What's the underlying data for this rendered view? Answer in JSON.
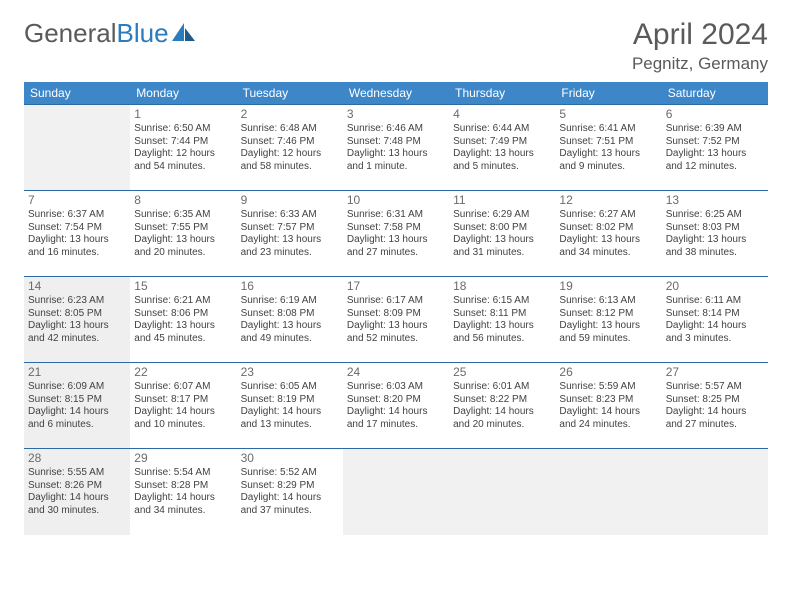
{
  "logo": {
    "part1": "General",
    "part2": "Blue"
  },
  "title": "April 2024",
  "location": "Pegnitz, Germany",
  "colors": {
    "header_bg": "#3d87c9",
    "header_text": "#ffffff",
    "row_border": "#2b6aa3",
    "shade_bg": "#efefef",
    "text": "#424242",
    "title_color": "#5a5a5a"
  },
  "weekdays": [
    "Sunday",
    "Monday",
    "Tuesday",
    "Wednesday",
    "Thursday",
    "Friday",
    "Saturday"
  ],
  "weeks": [
    [
      {
        "empty": true
      },
      {
        "day": "1",
        "sunrise": "Sunrise: 6:50 AM",
        "sunset": "Sunset: 7:44 PM",
        "d1": "Daylight: 12 hours",
        "d2": "and 54 minutes."
      },
      {
        "day": "2",
        "sunrise": "Sunrise: 6:48 AM",
        "sunset": "Sunset: 7:46 PM",
        "d1": "Daylight: 12 hours",
        "d2": "and 58 minutes."
      },
      {
        "day": "3",
        "sunrise": "Sunrise: 6:46 AM",
        "sunset": "Sunset: 7:48 PM",
        "d1": "Daylight: 13 hours",
        "d2": "and 1 minute."
      },
      {
        "day": "4",
        "sunrise": "Sunrise: 6:44 AM",
        "sunset": "Sunset: 7:49 PM",
        "d1": "Daylight: 13 hours",
        "d2": "and 5 minutes."
      },
      {
        "day": "5",
        "sunrise": "Sunrise: 6:41 AM",
        "sunset": "Sunset: 7:51 PM",
        "d1": "Daylight: 13 hours",
        "d2": "and 9 minutes."
      },
      {
        "day": "6",
        "sunrise": "Sunrise: 6:39 AM",
        "sunset": "Sunset: 7:52 PM",
        "d1": "Daylight: 13 hours",
        "d2": "and 12 minutes."
      }
    ],
    [
      {
        "day": "7",
        "sunrise": "Sunrise: 6:37 AM",
        "sunset": "Sunset: 7:54 PM",
        "d1": "Daylight: 13 hours",
        "d2": "and 16 minutes."
      },
      {
        "day": "8",
        "sunrise": "Sunrise: 6:35 AM",
        "sunset": "Sunset: 7:55 PM",
        "d1": "Daylight: 13 hours",
        "d2": "and 20 minutes."
      },
      {
        "day": "9",
        "sunrise": "Sunrise: 6:33 AM",
        "sunset": "Sunset: 7:57 PM",
        "d1": "Daylight: 13 hours",
        "d2": "and 23 minutes."
      },
      {
        "day": "10",
        "sunrise": "Sunrise: 6:31 AM",
        "sunset": "Sunset: 7:58 PM",
        "d1": "Daylight: 13 hours",
        "d2": "and 27 minutes."
      },
      {
        "day": "11",
        "sunrise": "Sunrise: 6:29 AM",
        "sunset": "Sunset: 8:00 PM",
        "d1": "Daylight: 13 hours",
        "d2": "and 31 minutes."
      },
      {
        "day": "12",
        "sunrise": "Sunrise: 6:27 AM",
        "sunset": "Sunset: 8:02 PM",
        "d1": "Daylight: 13 hours",
        "d2": "and 34 minutes."
      },
      {
        "day": "13",
        "sunrise": "Sunrise: 6:25 AM",
        "sunset": "Sunset: 8:03 PM",
        "d1": "Daylight: 13 hours",
        "d2": "and 38 minutes."
      }
    ],
    [
      {
        "day": "14",
        "shade": true,
        "sunrise": "Sunrise: 6:23 AM",
        "sunset": "Sunset: 8:05 PM",
        "d1": "Daylight: 13 hours",
        "d2": "and 42 minutes."
      },
      {
        "day": "15",
        "sunrise": "Sunrise: 6:21 AM",
        "sunset": "Sunset: 8:06 PM",
        "d1": "Daylight: 13 hours",
        "d2": "and 45 minutes."
      },
      {
        "day": "16",
        "sunrise": "Sunrise: 6:19 AM",
        "sunset": "Sunset: 8:08 PM",
        "d1": "Daylight: 13 hours",
        "d2": "and 49 minutes."
      },
      {
        "day": "17",
        "sunrise": "Sunrise: 6:17 AM",
        "sunset": "Sunset: 8:09 PM",
        "d1": "Daylight: 13 hours",
        "d2": "and 52 minutes."
      },
      {
        "day": "18",
        "sunrise": "Sunrise: 6:15 AM",
        "sunset": "Sunset: 8:11 PM",
        "d1": "Daylight: 13 hours",
        "d2": "and 56 minutes."
      },
      {
        "day": "19",
        "sunrise": "Sunrise: 6:13 AM",
        "sunset": "Sunset: 8:12 PM",
        "d1": "Daylight: 13 hours",
        "d2": "and 59 minutes."
      },
      {
        "day": "20",
        "sunrise": "Sunrise: 6:11 AM",
        "sunset": "Sunset: 8:14 PM",
        "d1": "Daylight: 14 hours",
        "d2": "and 3 minutes."
      }
    ],
    [
      {
        "day": "21",
        "shade": true,
        "sunrise": "Sunrise: 6:09 AM",
        "sunset": "Sunset: 8:15 PM",
        "d1": "Daylight: 14 hours",
        "d2": "and 6 minutes."
      },
      {
        "day": "22",
        "sunrise": "Sunrise: 6:07 AM",
        "sunset": "Sunset: 8:17 PM",
        "d1": "Daylight: 14 hours",
        "d2": "and 10 minutes."
      },
      {
        "day": "23",
        "sunrise": "Sunrise: 6:05 AM",
        "sunset": "Sunset: 8:19 PM",
        "d1": "Daylight: 14 hours",
        "d2": "and 13 minutes."
      },
      {
        "day": "24",
        "sunrise": "Sunrise: 6:03 AM",
        "sunset": "Sunset: 8:20 PM",
        "d1": "Daylight: 14 hours",
        "d2": "and 17 minutes."
      },
      {
        "day": "25",
        "sunrise": "Sunrise: 6:01 AM",
        "sunset": "Sunset: 8:22 PM",
        "d1": "Daylight: 14 hours",
        "d2": "and 20 minutes."
      },
      {
        "day": "26",
        "sunrise": "Sunrise: 5:59 AM",
        "sunset": "Sunset: 8:23 PM",
        "d1": "Daylight: 14 hours",
        "d2": "and 24 minutes."
      },
      {
        "day": "27",
        "sunrise": "Sunrise: 5:57 AM",
        "sunset": "Sunset: 8:25 PM",
        "d1": "Daylight: 14 hours",
        "d2": "and 27 minutes."
      }
    ],
    [
      {
        "day": "28",
        "shade": true,
        "sunrise": "Sunrise: 5:55 AM",
        "sunset": "Sunset: 8:26 PM",
        "d1": "Daylight: 14 hours",
        "d2": "and 30 minutes."
      },
      {
        "day": "29",
        "sunrise": "Sunrise: 5:54 AM",
        "sunset": "Sunset: 8:28 PM",
        "d1": "Daylight: 14 hours",
        "d2": "and 34 minutes."
      },
      {
        "day": "30",
        "sunrise": "Sunrise: 5:52 AM",
        "sunset": "Sunset: 8:29 PM",
        "d1": "Daylight: 14 hours",
        "d2": "and 37 minutes."
      },
      {
        "empty": true
      },
      {
        "empty": true
      },
      {
        "empty": true
      },
      {
        "empty": true
      }
    ]
  ]
}
